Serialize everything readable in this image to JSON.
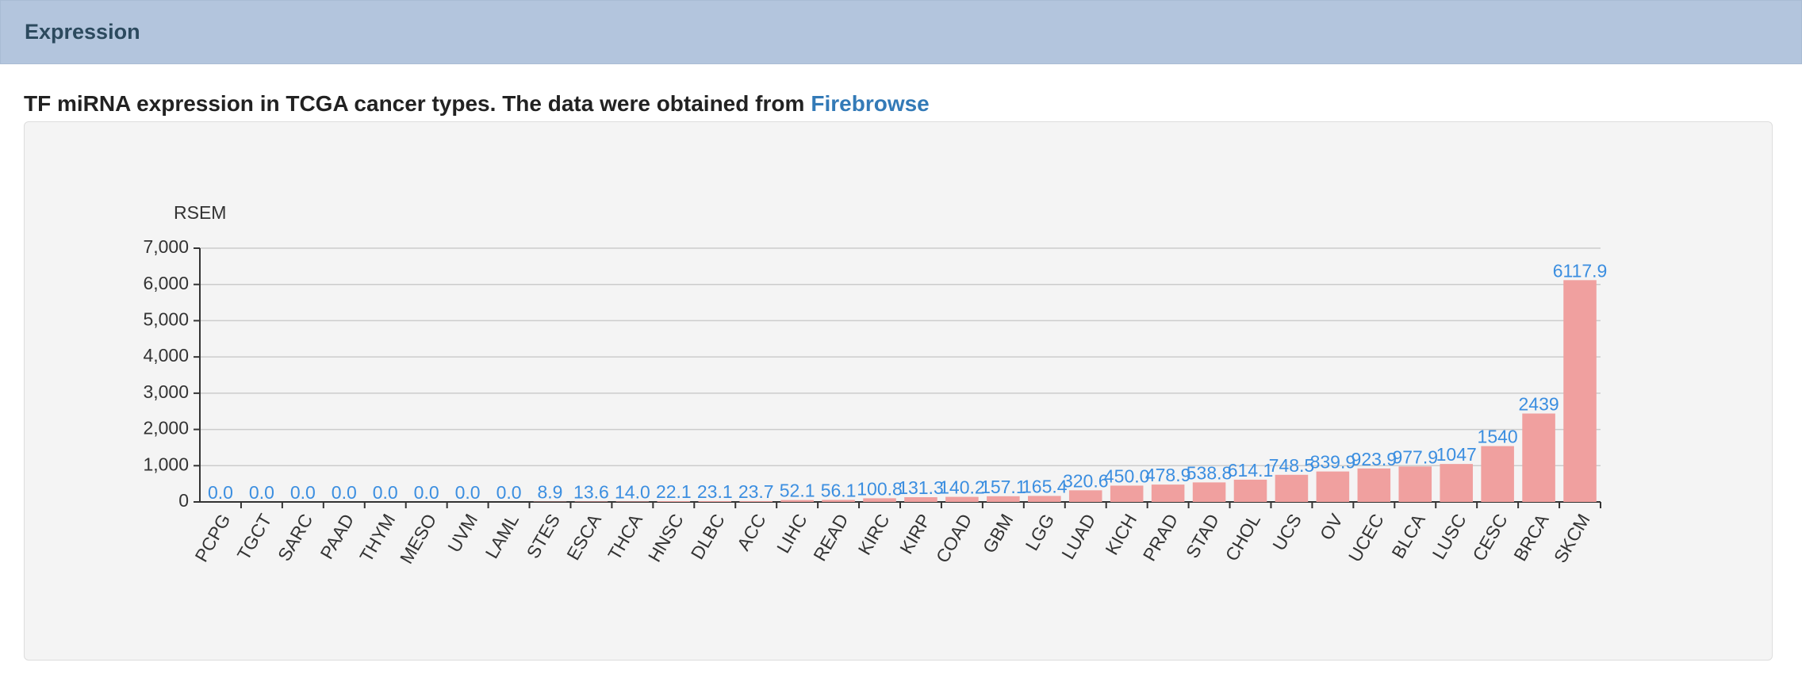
{
  "header": {
    "title": "Expression"
  },
  "subtitle": {
    "text": "TF miRNA expression in TCGA cancer types. The data were obtained from",
    "link": "Firebrowse"
  },
  "chart_data": {
    "type": "bar",
    "y_label": "RSEM",
    "categories": [
      "PCPG",
      "TGCT",
      "SARC",
      "PAAD",
      "THYM",
      "MESO",
      "UVM",
      "LAML",
      "STES",
      "ESCA",
      "THCA",
      "HNSC",
      "DLBC",
      "ACC",
      "LIHC",
      "READ",
      "KIRC",
      "KIRP",
      "COAD",
      "GBM",
      "LGG",
      "LUAD",
      "KICH",
      "PRAD",
      "STAD",
      "CHOL",
      "UCS",
      "OV",
      "UCEC",
      "BLCA",
      "LUSC",
      "CESC",
      "BRCA",
      "SKCM"
    ],
    "values": [
      0,
      0,
      0,
      0,
      0,
      0,
      0,
      0,
      8.9,
      13.6,
      14.0,
      22.1,
      23.1,
      23.7,
      52.1,
      56.1,
      100.8,
      131.3,
      140.2,
      157.1,
      165.4,
      320.6,
      450.0,
      478.9,
      538.8,
      614.1,
      748.5,
      839.9,
      923.9,
      977.9,
      1047,
      1540,
      2439,
      6117.9
    ],
    "value_labels": [
      "0.0",
      "0.0",
      "0.0",
      "0.0",
      "0.0",
      "0.0",
      "0.0",
      "0.0",
      "8.9",
      "13.6",
      "14.0",
      "22.1",
      "23.1",
      "23.7",
      "52.1",
      "56.1",
      "100.8",
      "131.3",
      "140.2",
      "157.1",
      "165.4",
      "320.6",
      "450.0",
      "478.9",
      "538.8",
      "614.1",
      "748.5",
      "839.9",
      "923.9",
      "977.9",
      "1047",
      "1540",
      "2439",
      "6117.9"
    ],
    "color": "#f0a09f",
    "label_color": "#3b8ee0",
    "ylim": [
      0,
      7000
    ],
    "yticks": [
      0,
      {
        "value": 1000,
        "label": "1,000"
      },
      {
        "value": 2000,
        "label": "2,000"
      },
      {
        "value": 3000,
        "label": "3,000"
      },
      {
        "value": 4000,
        "label": "4,000"
      },
      {
        "value": 5000,
        "label": "5,000"
      },
      {
        "value": 6000,
        "label": "6,000"
      },
      {
        "value": 7000,
        "label": "7,000"
      }
    ],
    "grid": true
  }
}
